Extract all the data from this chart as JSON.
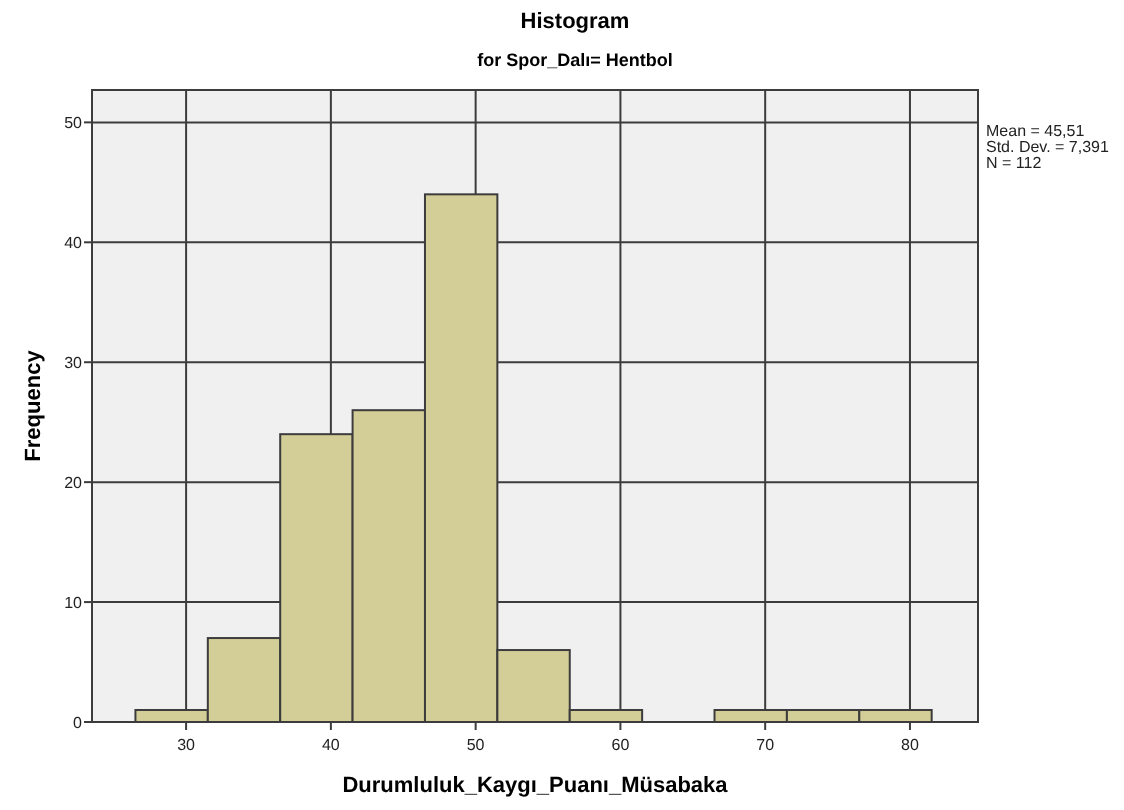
{
  "chart_data": {
    "type": "histogram",
    "title": "Histogram",
    "subtitle": "for Spor_Dalı= Hentbol",
    "xlabel": "Durumluluk_Kaygı_Puanı_Müsabaka",
    "ylabel": "Frequency",
    "bins": [
      26.5,
      31.5,
      36.5,
      41.5,
      46.5,
      51.5,
      56.5,
      61.5,
      66.5,
      71.5,
      76.5,
      81.5
    ],
    "values": [
      1,
      7,
      24,
      26,
      44,
      6,
      1,
      0,
      1,
      1,
      1
    ],
    "color": "#d3ce97",
    "xlim": [
      23.5,
      84.7
    ],
    "xticks": [
      30,
      40,
      50,
      60,
      70,
      80
    ],
    "ylim": [
      0,
      52.7
    ],
    "yticks": [
      0,
      10,
      20,
      30,
      40,
      50
    ],
    "grid": true,
    "annotations": [
      "Mean = 45,51",
      "Std. Dev. = 7,391",
      "N = 112"
    ]
  }
}
